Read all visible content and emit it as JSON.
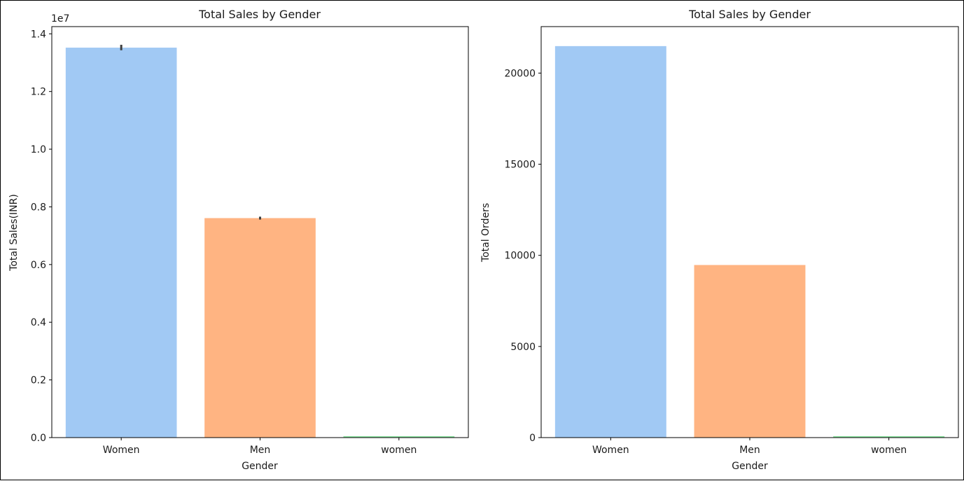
{
  "chart_data": [
    {
      "type": "bar",
      "title": "Total Sales by Gender",
      "xlabel": "Gender",
      "ylabel": "Total Sales(INR)",
      "offset_text": "1e7",
      "categories": [
        "Women",
        "Men",
        "women"
      ],
      "values": [
        13520000,
        7610000,
        50000
      ],
      "error_bars": [
        [
          13430000,
          13620000
        ],
        [
          7560000,
          7660000
        ],
        null
      ],
      "colors": [
        "#a1c9f4",
        "#ffb482",
        "#8de5a1"
      ],
      "ylim": [
        0,
        14250000
      ],
      "yticks": [
        0,
        2000000,
        4000000,
        6000000,
        8000000,
        10000000,
        12000000,
        14000000
      ],
      "ytick_labels": [
        "0.0",
        "0.2",
        "0.4",
        "0.6",
        "0.8",
        "1.0",
        "1.2",
        "1.4"
      ],
      "grid": false
    },
    {
      "type": "bar",
      "title": "Total Sales by Gender",
      "xlabel": "Gender",
      "ylabel": "Total Orders",
      "categories": [
        "Women",
        "Men",
        "women"
      ],
      "values": [
        21480,
        9470,
        80
      ],
      "colors": [
        "#a1c9f4",
        "#ffb482",
        "#8de5a1"
      ],
      "ylim": [
        0,
        22550
      ],
      "yticks": [
        0,
        5000,
        10000,
        15000,
        20000
      ],
      "ytick_labels": [
        "0",
        "5000",
        "10000",
        "15000",
        "20000"
      ],
      "grid": false
    }
  ]
}
